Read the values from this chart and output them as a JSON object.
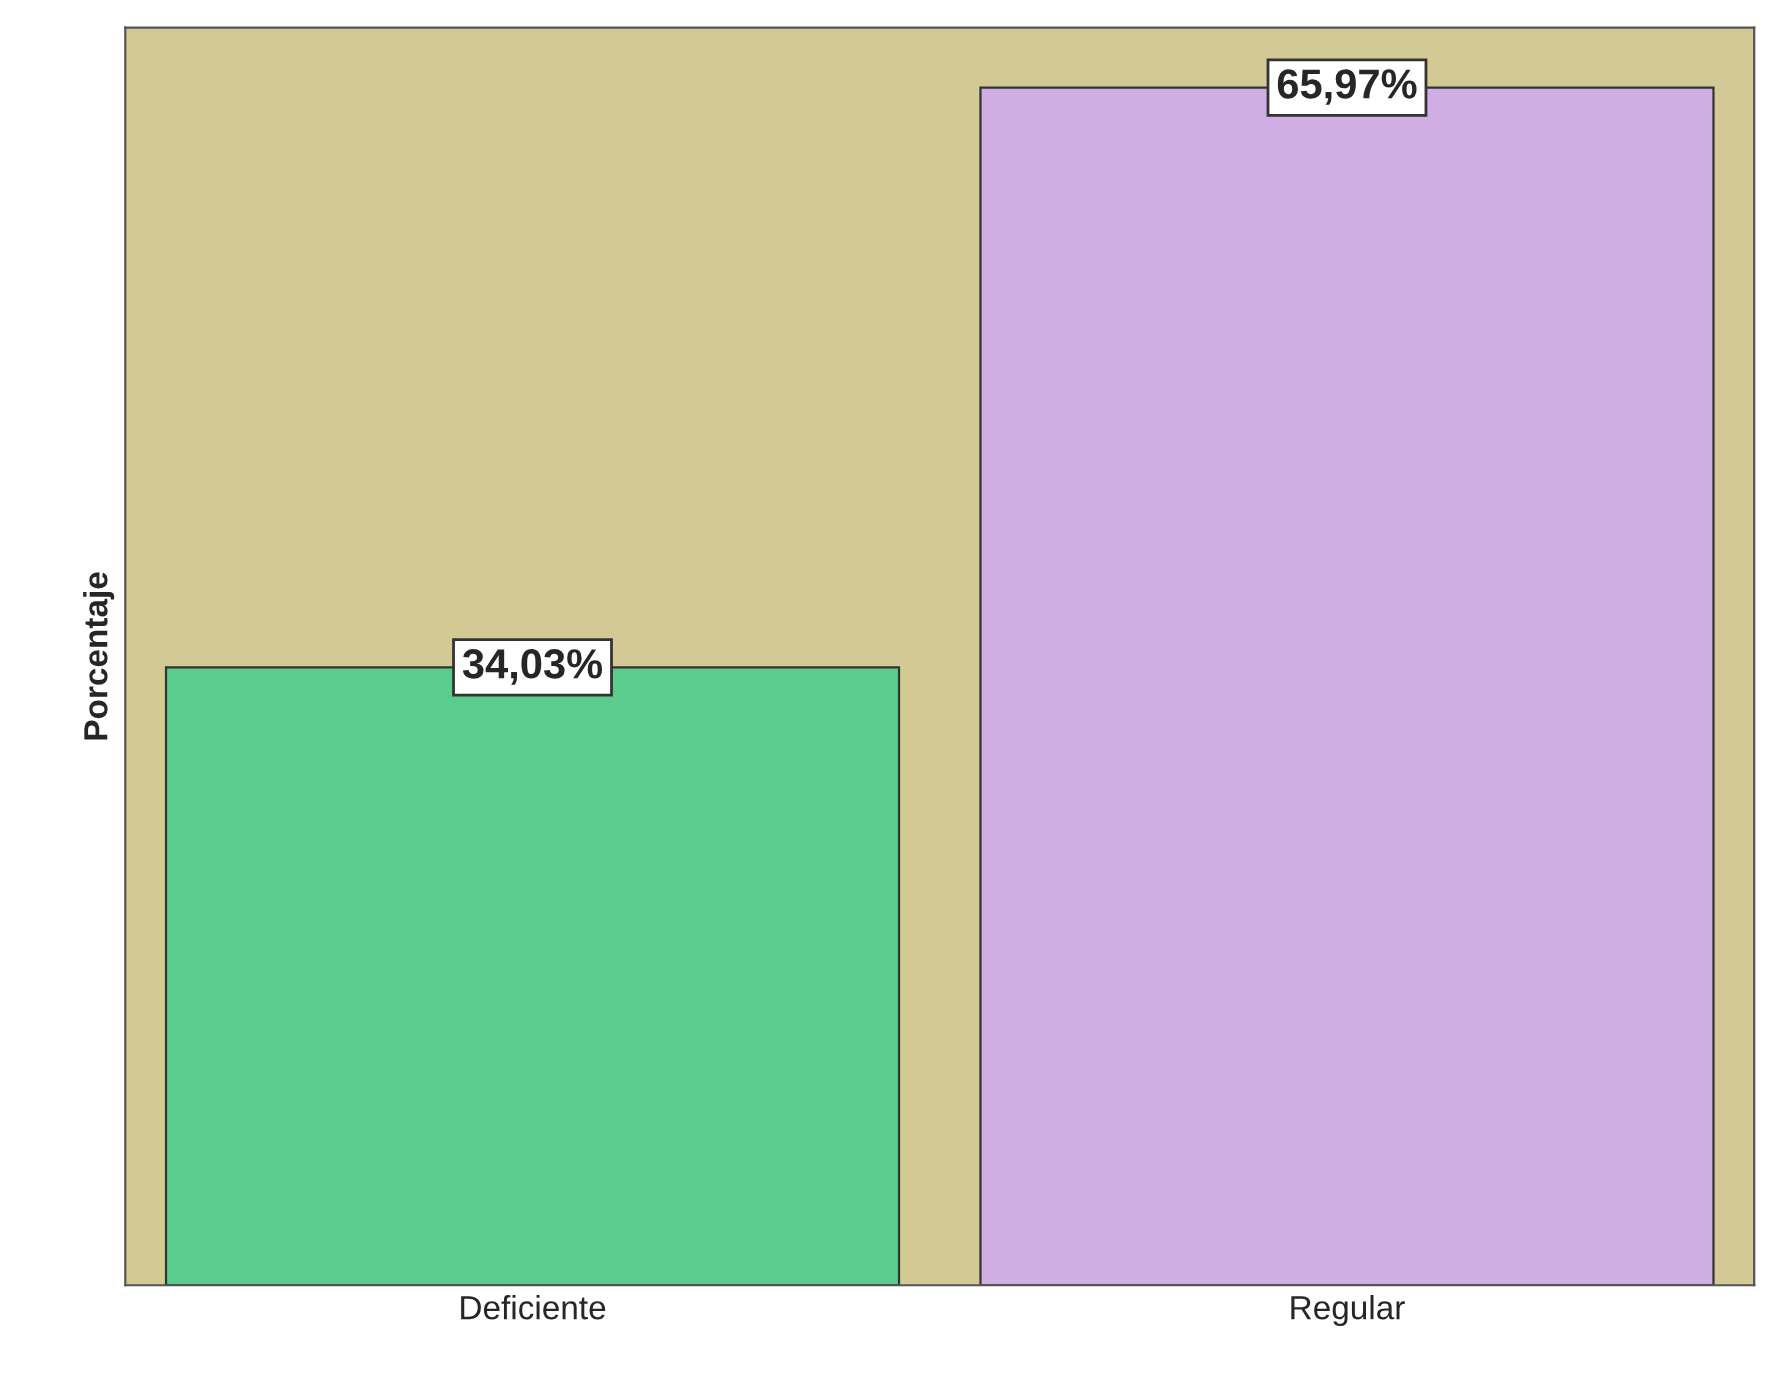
{
  "chart_data": {
    "type": "bar",
    "ylabel": "Porcentaje",
    "categories": [
      "Deficiente",
      "Regular"
    ],
    "values": [
      34.03,
      65.97
    ],
    "colors": [
      "#5ccc8c",
      "#d0aee4"
    ],
    "value_labels": [
      "34,03%",
      "65,97%"
    ],
    "tick_labels": "x",
    "grid": false,
    "legend": false
  }
}
